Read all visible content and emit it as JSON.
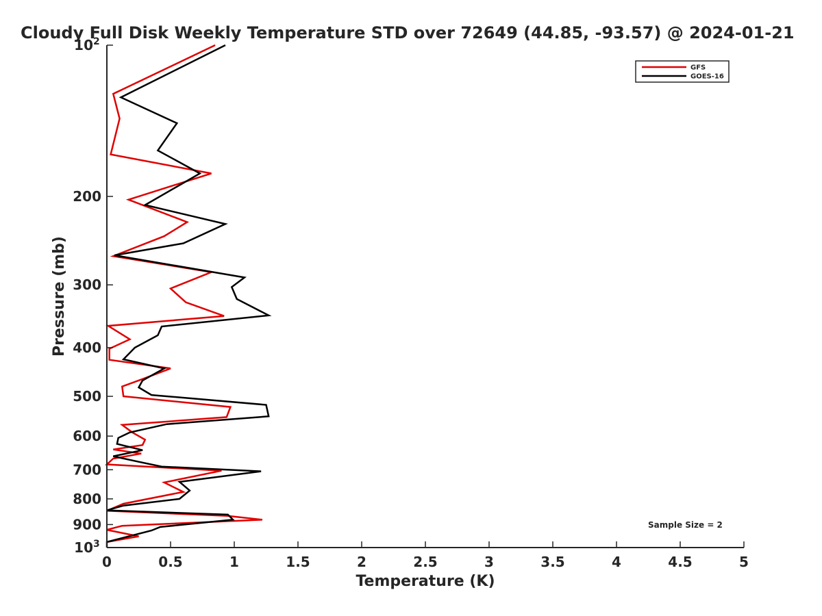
{
  "chart_data": {
    "type": "line",
    "title": "Cloudy Full Disk Weekly Temperature STD over 72649 (44.85, -93.57) @ 2024-01-21",
    "xlabel": "Temperature (K)",
    "ylabel": "Pressure (mb)",
    "xlim": [
      0,
      5
    ],
    "ylim": [
      100,
      1000
    ],
    "y_scale": "log",
    "y_reversed": true,
    "grid": false,
    "legend_position": "top-right",
    "x_ticks": [
      "0",
      "0.5",
      "1",
      "1.5",
      "2",
      "2.5",
      "3",
      "3.5",
      "4",
      "4.5",
      "5"
    ],
    "x_tick_values": [
      0,
      0.5,
      1,
      1.5,
      2,
      2.5,
      3,
      3.5,
      4,
      4.5,
      5
    ],
    "y_tick_values": [
      100,
      200,
      300,
      400,
      500,
      600,
      700,
      800,
      900,
      1000
    ],
    "y_ticks": [
      {
        "base": "10",
        "exp": "2"
      },
      {
        "base": "200"
      },
      {
        "base": "300"
      },
      {
        "base": "400"
      },
      {
        "base": "500"
      },
      {
        "base": "600"
      },
      {
        "base": "700"
      },
      {
        "base": "800"
      },
      {
        "base": "900"
      },
      {
        "base": "10",
        "exp": "3"
      }
    ],
    "annotation": "Sample Size = 2",
    "series": [
      {
        "name": "GFS",
        "color": "#e00000",
        "points": [
          [
            0.85,
            100
          ],
          [
            0.05,
            125
          ],
          [
            0.1,
            140
          ],
          [
            0.03,
            165
          ],
          [
            0.82,
            180
          ],
          [
            0.17,
            203
          ],
          [
            0.63,
            225
          ],
          [
            0.45,
            240
          ],
          [
            0.05,
            263
          ],
          [
            0.82,
            283
          ],
          [
            0.5,
            305
          ],
          [
            0.62,
            325
          ],
          [
            0.92,
            346
          ],
          [
            0.01,
            362
          ],
          [
            0.18,
            385
          ],
          [
            0.02,
            402
          ],
          [
            0.02,
            423
          ],
          [
            0.5,
            440
          ],
          [
            0.28,
            462
          ],
          [
            0.12,
            478
          ],
          [
            0.13,
            500
          ],
          [
            0.97,
            525
          ],
          [
            0.94,
            550
          ],
          [
            0.12,
            570
          ],
          [
            0.2,
            590
          ],
          [
            0.3,
            610
          ],
          [
            0.28,
            625
          ],
          [
            0.05,
            638
          ],
          [
            0.27,
            650
          ],
          [
            0.05,
            665
          ],
          [
            0.0,
            683
          ],
          [
            0.9,
            703
          ],
          [
            0.45,
            742
          ],
          [
            0.6,
            775
          ],
          [
            0.13,
            818
          ],
          [
            0.0,
            845
          ],
          [
            0.95,
            865
          ],
          [
            1.22,
            880
          ],
          [
            0.12,
            905
          ],
          [
            0.0,
            922
          ],
          [
            0.25,
            950
          ],
          [
            0.0,
            975
          ]
        ]
      },
      {
        "name": "GOES-16",
        "color": "#000000",
        "points": [
          [
            0.93,
            100
          ],
          [
            0.11,
            127
          ],
          [
            0.55,
            143
          ],
          [
            0.4,
            162
          ],
          [
            0.73,
            180
          ],
          [
            0.3,
            208
          ],
          [
            0.93,
            227
          ],
          [
            0.6,
            248
          ],
          [
            0.06,
            262
          ],
          [
            1.08,
            290
          ],
          [
            0.98,
            303
          ],
          [
            1.02,
            320
          ],
          [
            1.27,
            345
          ],
          [
            0.43,
            363
          ],
          [
            0.4,
            378
          ],
          [
            0.22,
            400
          ],
          [
            0.13,
            422
          ],
          [
            0.45,
            440
          ],
          [
            0.28,
            465
          ],
          [
            0.25,
            480
          ],
          [
            0.35,
            497
          ],
          [
            1.25,
            520
          ],
          [
            1.27,
            548
          ],
          [
            0.47,
            568
          ],
          [
            0.18,
            590
          ],
          [
            0.09,
            605
          ],
          [
            0.08,
            622
          ],
          [
            0.28,
            640
          ],
          [
            0.05,
            658
          ],
          [
            0.25,
            675
          ],
          [
            0.43,
            690
          ],
          [
            1.21,
            705
          ],
          [
            0.57,
            740
          ],
          [
            0.65,
            770
          ],
          [
            0.57,
            800
          ],
          [
            0.13,
            825
          ],
          [
            0.0,
            843
          ],
          [
            0.95,
            860
          ],
          [
            0.99,
            880
          ],
          [
            0.42,
            910
          ],
          [
            0.35,
            925
          ],
          [
            0.0,
            975
          ],
          [
            0.0,
            1000
          ]
        ]
      }
    ]
  }
}
